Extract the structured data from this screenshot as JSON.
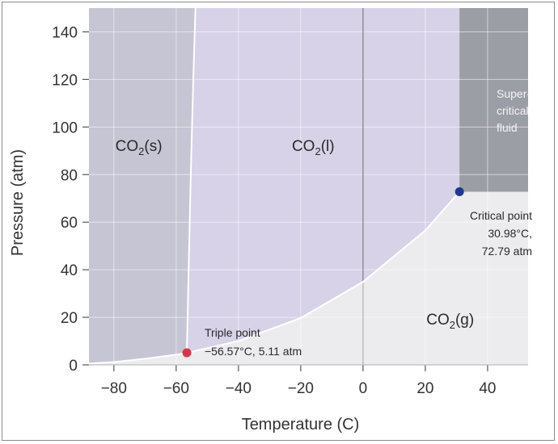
{
  "chart_data": {
    "type": "phase-diagram",
    "xlabel": "Temperature (C)",
    "ylabel": "Pressure (atm)",
    "xlim": [
      -88,
      53
    ],
    "ylim": [
      0,
      150
    ],
    "x_ticks": [
      -80,
      -60,
      -40,
      -20,
      0,
      20,
      40
    ],
    "x_tick_labels": [
      "−80",
      "−60",
      "−40",
      "−20",
      "0",
      "20",
      "40"
    ],
    "y_ticks": [
      0,
      20,
      40,
      60,
      80,
      100,
      120,
      140
    ],
    "y_tick_labels": [
      "0",
      "20",
      "40",
      "60",
      "80",
      "100",
      "120",
      "140"
    ],
    "grid": true,
    "regions": [
      {
        "label": "CO2(s)",
        "base": "CO",
        "sub": "2",
        "tail": "(s)",
        "x": -72,
        "y": 90
      },
      {
        "label": "CO2(l)",
        "base": "CO",
        "sub": "2",
        "tail": "(l)",
        "x": -16,
        "y": 90
      },
      {
        "label": "CO2(g)",
        "base": "CO",
        "sub": "2",
        "tail": "(g)",
        "x": 28,
        "y": 17
      }
    ],
    "supercritical_label": [
      "Super-",
      "critical",
      "fluid"
    ],
    "curves": {
      "sublimation": [
        [
          -88,
          0.6
        ],
        [
          -80,
          1.2
        ],
        [
          -70,
          2.6
        ],
        [
          -60,
          4.3
        ],
        [
          -56.57,
          5.11
        ]
      ],
      "melting": [
        [
          -56.57,
          5.11
        ],
        [
          -56,
          40
        ],
        [
          -55.3,
          80
        ],
        [
          -54.5,
          120
        ],
        [
          -53.8,
          150
        ]
      ],
      "vaporization": [
        [
          -56.57,
          5.11
        ],
        [
          -40,
          10
        ],
        [
          -20,
          19.7
        ],
        [
          0,
          34.9
        ],
        [
          20,
          56.5
        ],
        [
          30.98,
          72.79
        ]
      ]
    },
    "points": [
      {
        "name": "triple",
        "x": -56.57,
        "y": 5.11,
        "color": "#d9344a",
        "label_lines": [
          "Triple point",
          "−56.57°C, 5.11 atm"
        ]
      },
      {
        "name": "critical",
        "x": 30.98,
        "y": 72.79,
        "color": "#1f3a8c",
        "label_lines": [
          "Critical point",
          "30.98°C,",
          "72.79 atm"
        ]
      }
    ],
    "colors": {
      "solid": "#c5c5d3",
      "liquid": "#d7d2e7",
      "gas": "#ececef",
      "supercritical": "#9c9ea5",
      "grid": "#ffffff",
      "zero_line": "#8a8a90"
    }
  }
}
